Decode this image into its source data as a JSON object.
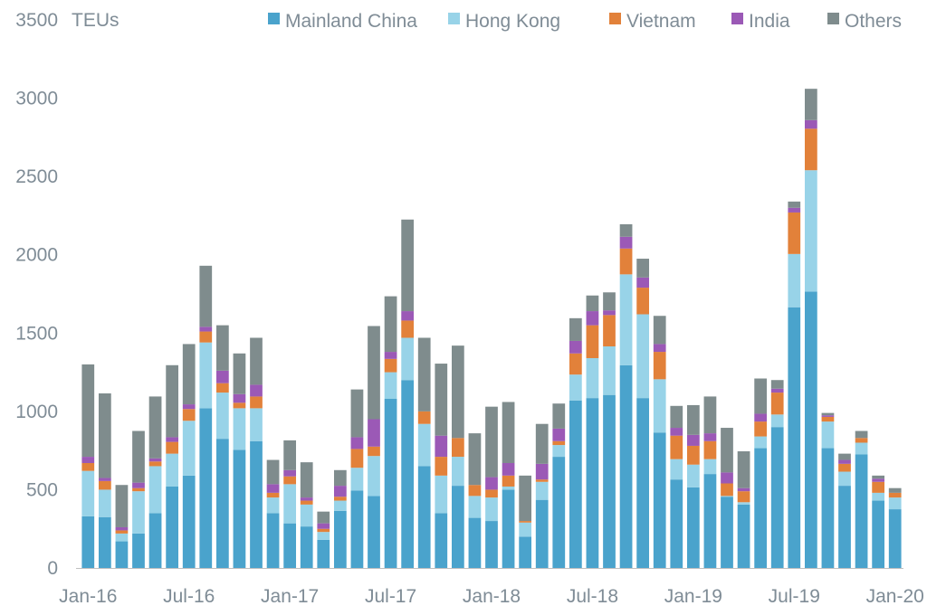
{
  "chart_data": {
    "type": "bar",
    "stacked": true,
    "y_unit_label": "TEUs",
    "ylim": [
      0,
      3500
    ],
    "y_ticks": [
      0,
      500,
      1000,
      1500,
      2000,
      2500,
      3000,
      3500
    ],
    "x_tick_labels": [
      {
        "index": 0,
        "label": "Jan-16"
      },
      {
        "index": 6,
        "label": "Jul-16"
      },
      {
        "index": 12,
        "label": "Jan-17"
      },
      {
        "index": 18,
        "label": "Jul-17"
      },
      {
        "index": 24,
        "label": "Jan-18"
      },
      {
        "index": 30,
        "label": "Jul-18"
      },
      {
        "index": 36,
        "label": "Jan-19"
      },
      {
        "index": 42,
        "label": "Jul-19"
      },
      {
        "index": 48,
        "label": "Jan-20"
      }
    ],
    "categories": [
      "Jan-16",
      "Feb-16",
      "Mar-16",
      "Apr-16",
      "May-16",
      "Jun-16",
      "Jul-16",
      "Aug-16",
      "Sep-16",
      "Oct-16",
      "Nov-16",
      "Dec-16",
      "Jan-17",
      "Feb-17",
      "Mar-17",
      "Apr-17",
      "May-17",
      "Jun-17",
      "Jul-17",
      "Aug-17",
      "Sep-17",
      "Oct-17",
      "Nov-17",
      "Dec-17",
      "Jan-18",
      "Feb-18",
      "Mar-18",
      "Apr-18",
      "May-18",
      "Jun-18",
      "Jul-18",
      "Aug-18",
      "Sep-18",
      "Oct-18",
      "Nov-18",
      "Dec-18",
      "Jan-19",
      "Feb-19",
      "Mar-19",
      "Apr-19",
      "May-19",
      "Jun-19",
      "Jul-19",
      "Aug-19",
      "Sep-19",
      "Oct-19",
      "Nov-19",
      "Dec-19",
      "Jan-20"
    ],
    "legend_position": "top-right",
    "grid": false,
    "series": [
      {
        "name": "Mainland China",
        "color": "#4aa3cc",
        "values": [
          330,
          325,
          170,
          220,
          350,
          520,
          590,
          1020,
          825,
          755,
          810,
          350,
          285,
          265,
          180,
          365,
          495,
          460,
          1080,
          1200,
          650,
          350,
          525,
          320,
          300,
          500,
          200,
          435,
          710,
          1070,
          1085,
          1105,
          1295,
          1085,
          865,
          565,
          515,
          600,
          455,
          405,
          765,
          900,
          1665,
          1765,
          765,
          525,
          725,
          430,
          375
        ]
      },
      {
        "name": "Hong Kong",
        "color": "#98d3e8",
        "values": [
          290,
          175,
          50,
          270,
          300,
          210,
          350,
          420,
          295,
          265,
          210,
          100,
          250,
          140,
          50,
          65,
          145,
          255,
          170,
          270,
          270,
          240,
          185,
          140,
          150,
          20,
          90,
          115,
          75,
          165,
          255,
          310,
          580,
          535,
          340,
          130,
          145,
          95,
          5,
          15,
          75,
          80,
          340,
          775,
          170,
          90,
          75,
          50,
          75
        ]
      },
      {
        "name": "Vietnam",
        "color": "#e2813a",
        "values": [
          50,
          55,
          20,
          20,
          30,
          75,
          75,
          70,
          60,
          35,
          75,
          30,
          50,
          25,
          20,
          25,
          120,
          60,
          85,
          110,
          80,
          120,
          120,
          70,
          50,
          70,
          10,
          15,
          25,
          135,
          210,
          200,
          165,
          170,
          175,
          150,
          120,
          115,
          80,
          70,
          95,
          140,
          265,
          265,
          30,
          50,
          30,
          70,
          30
        ]
      },
      {
        "name": "India",
        "color": "#9b59b6",
        "values": [
          40,
          20,
          20,
          35,
          20,
          30,
          30,
          30,
          80,
          55,
          75,
          55,
          40,
          20,
          35,
          70,
          75,
          175,
          45,
          60,
          0,
          135,
          0,
          0,
          80,
          80,
          0,
          100,
          80,
          80,
          90,
          30,
          75,
          65,
          50,
          50,
          70,
          50,
          70,
          20,
          50,
          25,
          30,
          55,
          10,
          25,
          0,
          20,
          0
        ]
      },
      {
        "name": "Others",
        "color": "#7f8c8d",
        "values": [
          590,
          540,
          270,
          330,
          395,
          460,
          385,
          390,
          290,
          260,
          300,
          155,
          190,
          225,
          75,
          100,
          305,
          595,
          355,
          585,
          470,
          460,
          590,
          330,
          450,
          390,
          290,
          255,
          160,
          145,
          100,
          115,
          80,
          120,
          180,
          140,
          190,
          235,
          285,
          235,
          225,
          55,
          40,
          200,
          15,
          40,
          45,
          20,
          30
        ]
      }
    ]
  }
}
